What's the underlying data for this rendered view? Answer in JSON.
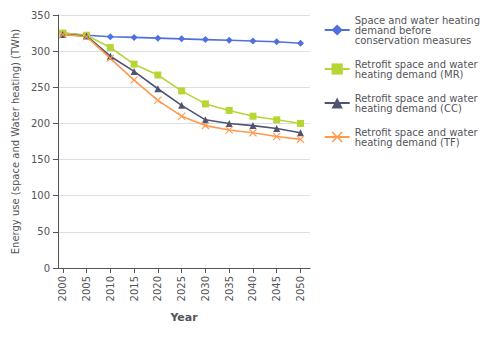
{
  "chart_data": {
    "type": "line",
    "x": [
      2000,
      2005,
      2010,
      2015,
      2020,
      2025,
      2030,
      2035,
      2040,
      2045,
      2050
    ],
    "series": [
      {
        "name": "Space and water heating\ndemand before\nconservation measures",
        "marker": "diamond",
        "values": [
          325,
          322,
          320,
          319,
          318,
          317,
          316,
          315,
          314,
          313,
          311
        ]
      },
      {
        "name": "Retrofit space and water\nheating demand (MR)",
        "marker": "square",
        "values": [
          325,
          322,
          305,
          282,
          267,
          245,
          227,
          218,
          210,
          205,
          200
        ]
      },
      {
        "name": "Retrofit space and water\nheating demand (CC)",
        "marker": "triangle",
        "values": [
          323,
          321,
          293,
          272,
          248,
          225,
          205,
          200,
          197,
          193,
          187
        ]
      },
      {
        "name": "Retrofit space and water\nheating demand (TF)",
        "marker": "x",
        "values": [
          323,
          320,
          290,
          260,
          232,
          210,
          197,
          191,
          187,
          182,
          178
        ]
      }
    ],
    "x_label": "Year",
    "y_label": "Energy use (space and Water heating) (TWh)",
    "xlim": [
      1999,
      2052
    ],
    "xticks": [
      2000,
      2005,
      2010,
      2015,
      2020,
      2025,
      2030,
      2035,
      2040,
      2045,
      2050
    ],
    "ylim": [
      0,
      350
    ],
    "yticks": [
      0,
      50,
      100,
      150,
      200,
      250,
      300,
      350
    ],
    "grid": "y",
    "legend": "right"
  }
}
